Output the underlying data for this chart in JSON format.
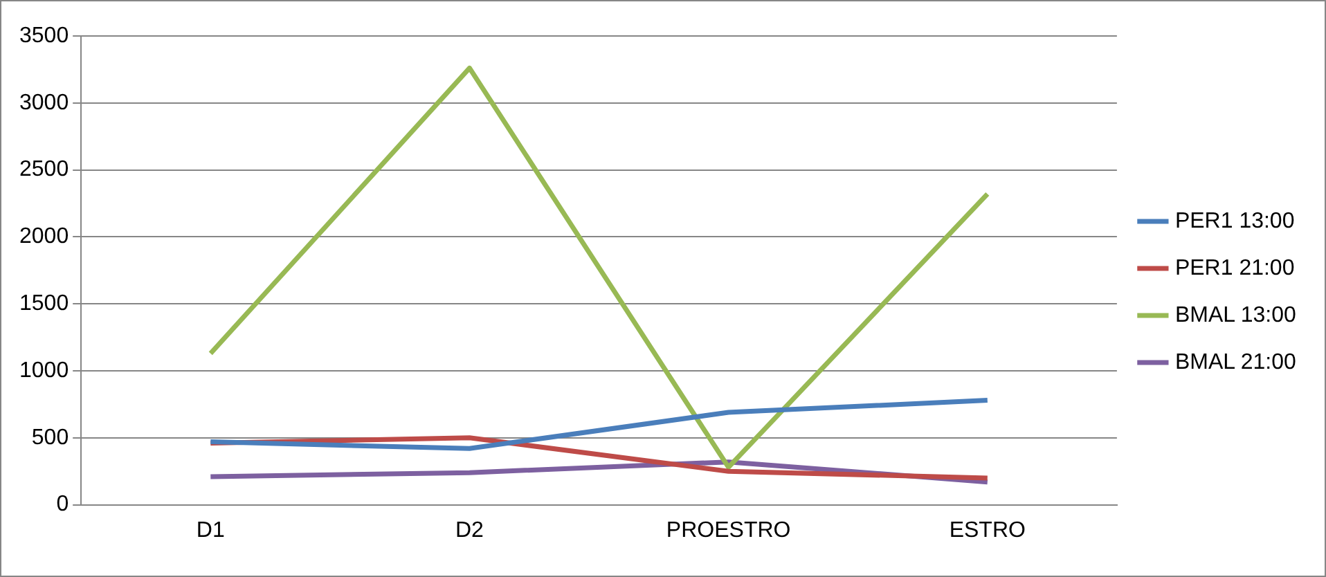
{
  "chart_data": {
    "type": "line",
    "categories": [
      "D1",
      "D2",
      "PROESTRO",
      "ESTRO"
    ],
    "series": [
      {
        "name": "PER1 13:00",
        "color": "#4a7ebb",
        "values": [
          470,
          420,
          690,
          780
        ]
      },
      {
        "name": "PER1 21:00",
        "color": "#be4b48",
        "values": [
          460,
          500,
          250,
          200
        ]
      },
      {
        "name": "BMAL 13:00",
        "color": "#98b954",
        "values": [
          1130,
          3260,
          280,
          2320
        ]
      },
      {
        "name": "BMAL 21:00",
        "color": "#7d60a0",
        "values": [
          210,
          240,
          320,
          170
        ]
      }
    ],
    "ylim": [
      0,
      3500
    ],
    "yticks": [
      0,
      500,
      1000,
      1500,
      2000,
      2500,
      3000,
      3500
    ],
    "grid": "y",
    "legend": "right",
    "marker": "none"
  }
}
